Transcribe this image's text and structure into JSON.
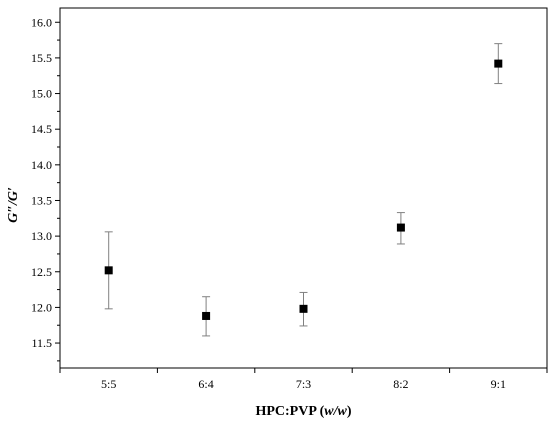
{
  "chart_data": {
    "type": "scatter",
    "categories": [
      "5:5",
      "6:4",
      "7:3",
      "8:2",
      "9:1"
    ],
    "series": [
      {
        "values": [
          12.52,
          11.88,
          11.98,
          13.12,
          15.42
        ],
        "err_low": [
          11.98,
          11.6,
          11.74,
          12.89,
          15.14
        ],
        "err_high": [
          13.06,
          12.15,
          12.21,
          13.33,
          15.7
        ]
      }
    ],
    "yticks": [
      "11.5",
      "12.0",
      "12.5",
      "13.0",
      "13.5",
      "14.0",
      "14.5",
      "15.0",
      "15.5",
      "16.0"
    ],
    "ylim": [
      11.15,
      16.2
    ],
    "xlabel_parts": [
      "HPC:PVP (",
      "w/w",
      ")"
    ],
    "ylabel": "G″/G′",
    "grid": false,
    "marker_color": "#000000",
    "errorbar_color": "#808080"
  }
}
